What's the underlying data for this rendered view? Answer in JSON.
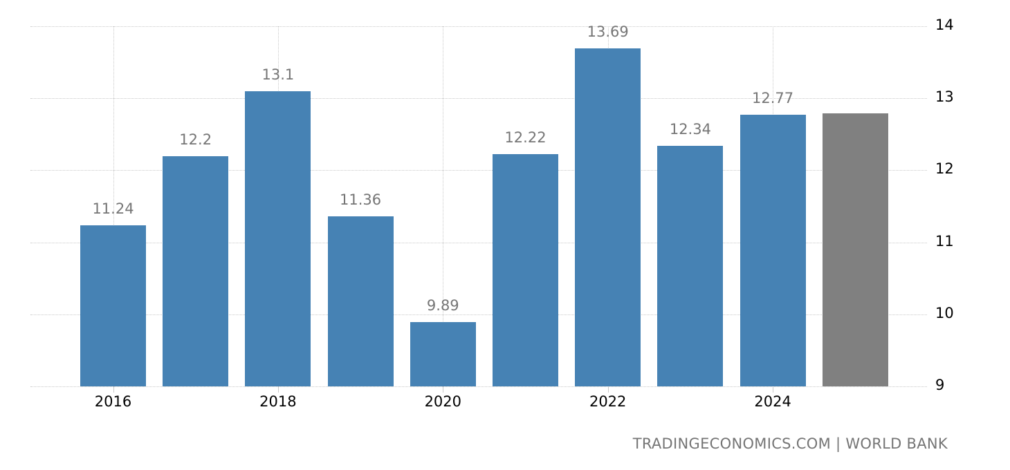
{
  "chart_data": {
    "type": "bar",
    "title": "",
    "xlabel": "",
    "ylabel": "",
    "categories": [
      "2016",
      "2017",
      "2018",
      "2019",
      "2020",
      "2021",
      "2022",
      "2023",
      "2024",
      "2025"
    ],
    "values": [
      11.24,
      12.2,
      13.1,
      11.36,
      9.89,
      12.22,
      13.69,
      12.34,
      12.77,
      12.79
    ],
    "value_labels": [
      "11.24",
      "12.2",
      "13.1",
      "11.36",
      "9.89",
      "12.22",
      "13.69",
      "12.34",
      "12.77",
      ""
    ],
    "forecast_index": 9,
    "x_tick_labels": [
      "2016",
      "2018",
      "2020",
      "2022",
      "2024"
    ],
    "y_ticks": [
      9,
      10,
      11,
      12,
      13,
      14
    ],
    "ylim": [
      9,
      14
    ],
    "y_axis_position": "right",
    "grid": true,
    "legend": null,
    "colors": {
      "actual": "#4682b4",
      "forecast": "#808080",
      "value_label": "#757575"
    },
    "source": "TRADINGECONOMICS.COM | WORLD BANK"
  },
  "footer": {
    "source": "TRADINGECONOMICS.COM | WORLD BANK"
  }
}
